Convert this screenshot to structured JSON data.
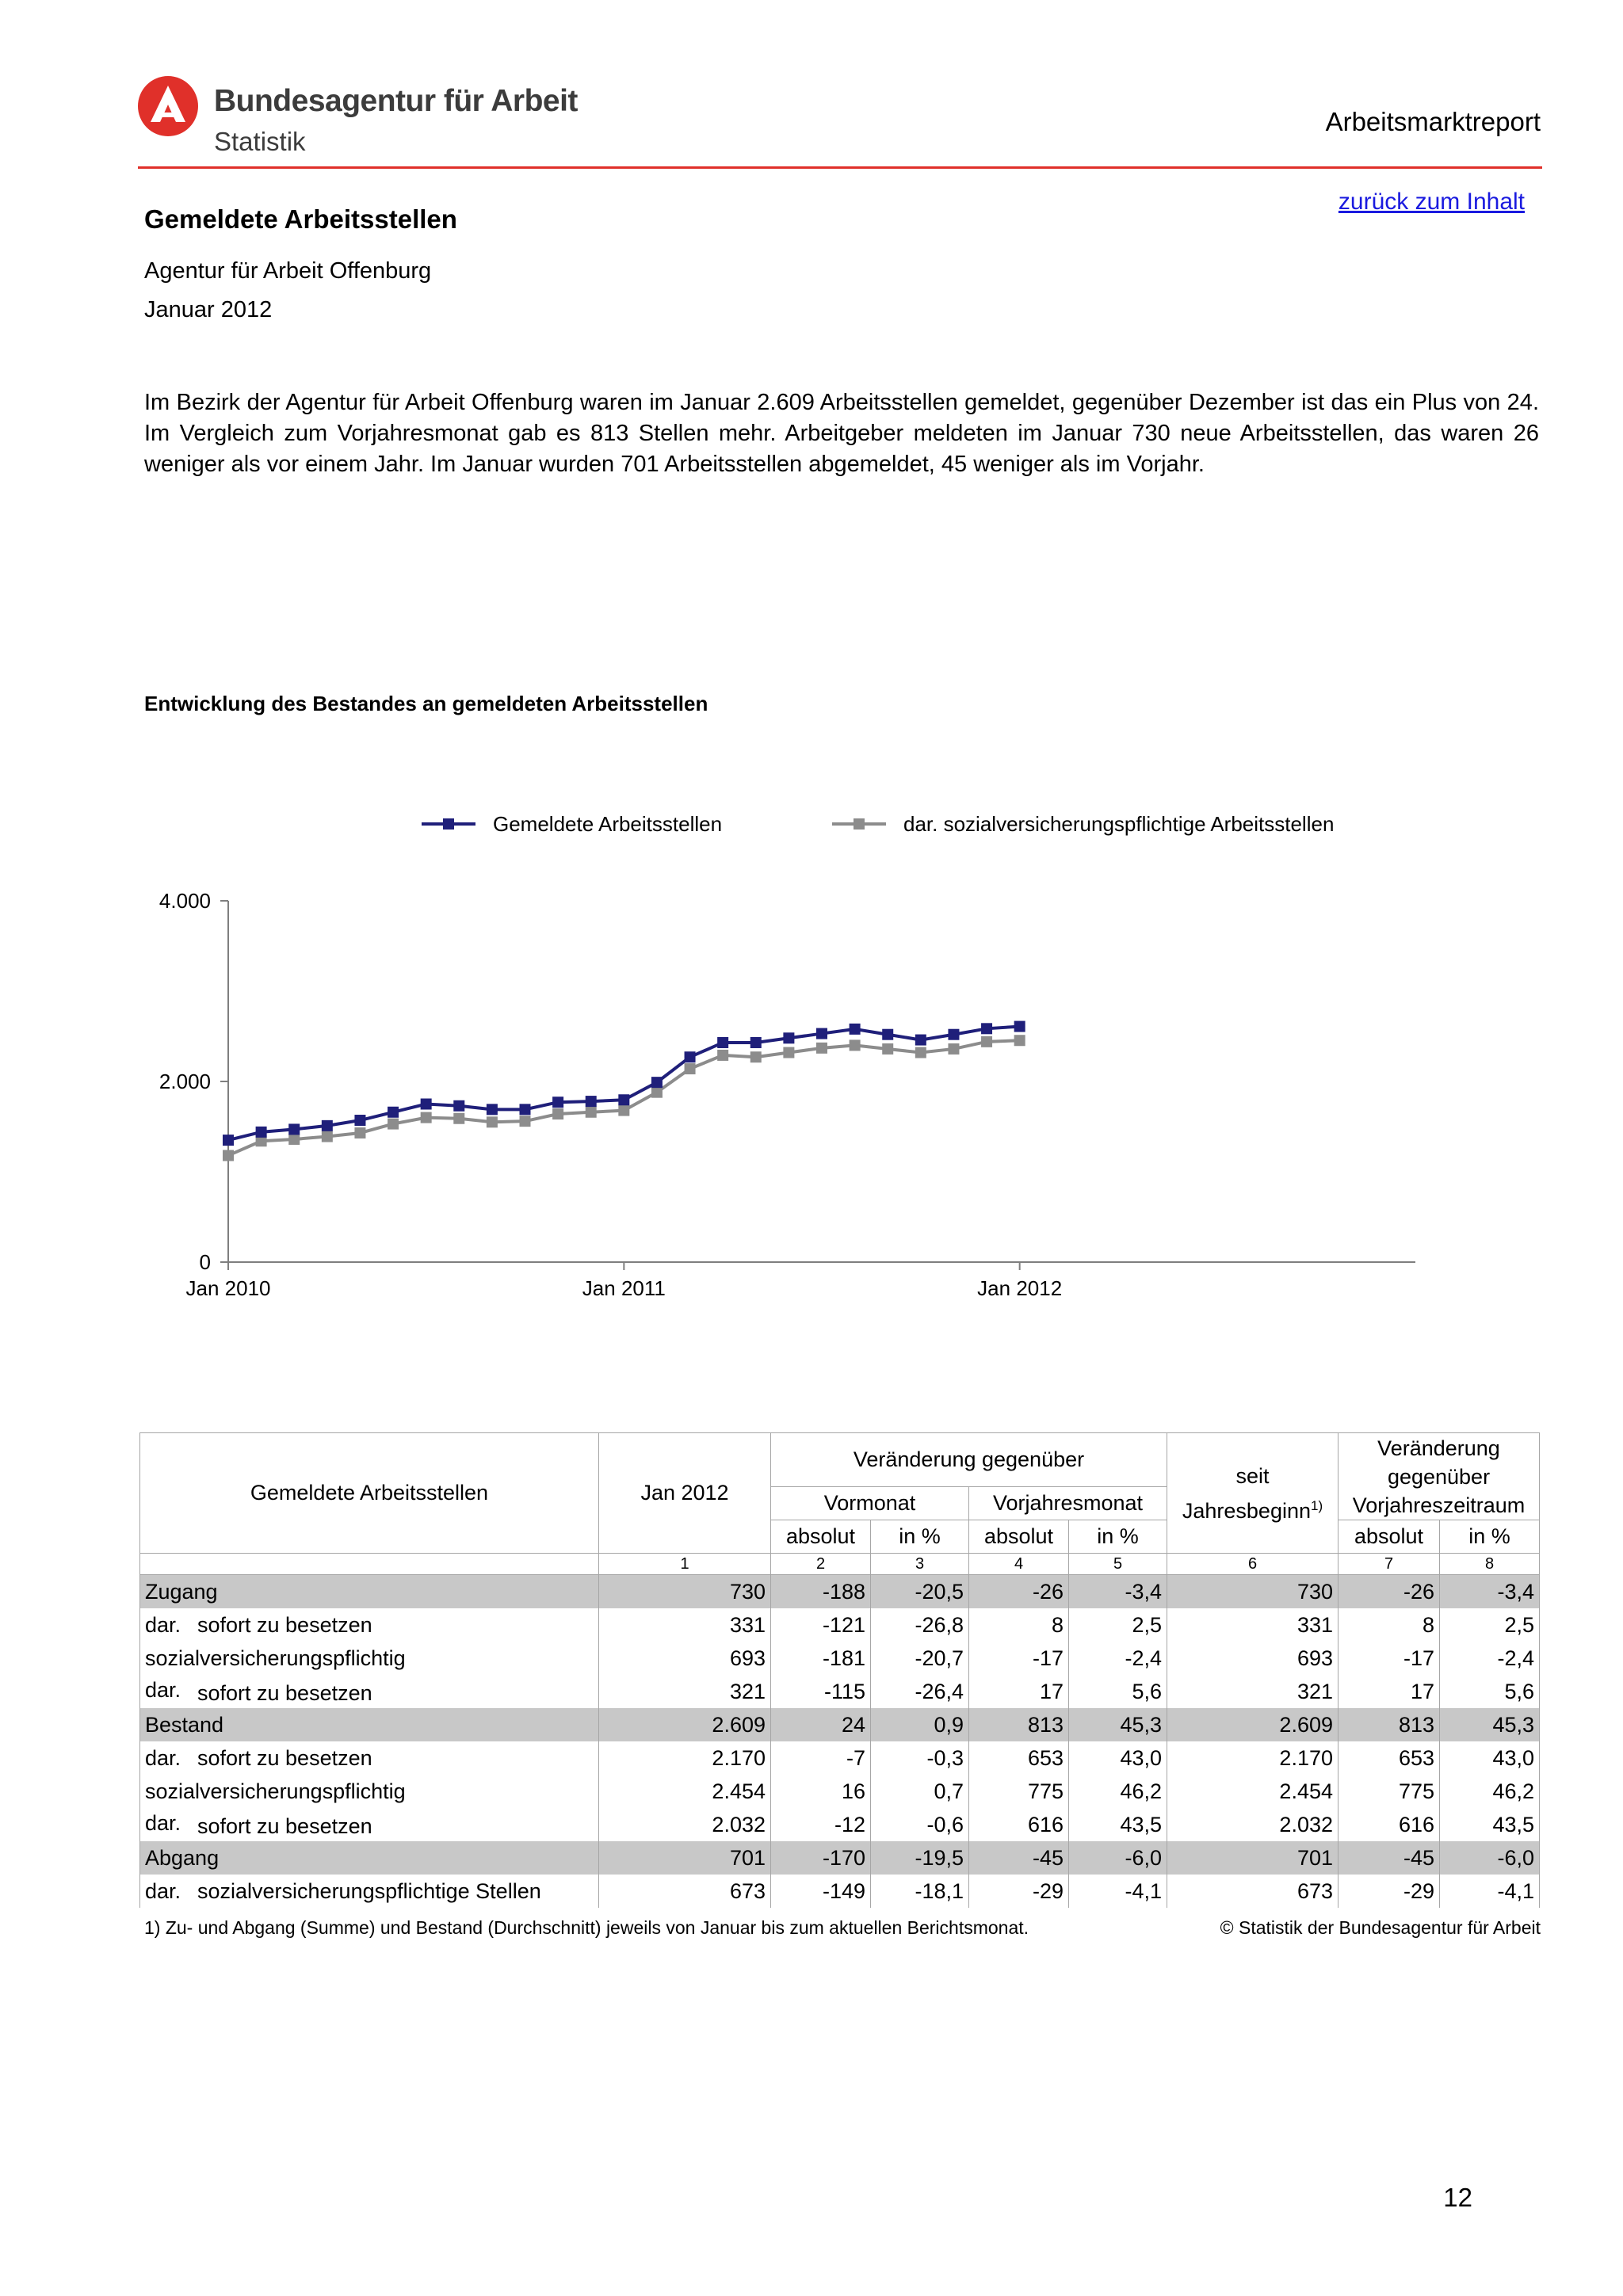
{
  "header": {
    "org_name": "Bundesagentur für Arbeit",
    "org_sub": "Statistik",
    "report_name": "Arbeitsmarktreport",
    "accent_color": "#e0302a"
  },
  "toc_link": "zurück zum Inhalt",
  "page_title": "Gemeldete Arbeitsstellen",
  "agency": "Agentur für Arbeit Offenburg",
  "period": "Januar 2012",
  "intro": "Im Bezirk der Agentur für Arbeit Offenburg waren im Januar 2.609 Arbeitsstellen gemeldet, gegenüber Dezember ist das ein Plus von 24. Im Vergleich zum Vorjahresmonat gab es 813 Stellen mehr. Arbeitgeber meldeten im Januar 730 neue Arbeitsstellen, das waren 26 weniger als vor einem Jahr. Im Januar wurden 701 Arbeitsstellen abgemeldet, 45 weniger als im Vorjahr.",
  "chart_title": "Entwicklung des Bestandes an gemeldeten Arbeitsstellen",
  "chart_data": {
    "type": "line",
    "title": "Entwicklung des Bestandes an gemeldeten Arbeitsstellen",
    "x": [
      "Jan 2010",
      "Feb 2010",
      "Mär 2010",
      "Apr 2010",
      "Mai 2010",
      "Jun 2010",
      "Jul 2010",
      "Aug 2010",
      "Sep 2010",
      "Okt 2010",
      "Nov 2010",
      "Dez 2010",
      "Jan 2011",
      "Feb 2011",
      "Mär 2011",
      "Apr 2011",
      "Mai 2011",
      "Jun 2011",
      "Jul 2011",
      "Aug 2011",
      "Sep 2011",
      "Okt 2011",
      "Nov 2011",
      "Dez 2011",
      "Jan 2012"
    ],
    "x_tick_labels": [
      "Jan 2010",
      "Jan 2011",
      "Jan 2012"
    ],
    "y_tick_labels": [
      "0",
      "2.000",
      "4.000"
    ],
    "ylim": [
      0,
      4000
    ],
    "xlim_months": [
      0,
      36
    ],
    "series": [
      {
        "name": "Gemeldete Arbeitsstellen",
        "color": "#1f1f7a",
        "values": [
          1350,
          1440,
          1470,
          1510,
          1570,
          1660,
          1750,
          1730,
          1690,
          1690,
          1770,
          1780,
          1796,
          1990,
          2270,
          2430,
          2430,
          2480,
          2530,
          2580,
          2520,
          2460,
          2520,
          2585,
          2609
        ]
      },
      {
        "name": "dar. sozialversicherungspflichtige Arbeitsstellen",
        "color": "#8c8c8c",
        "values": [
          1180,
          1340,
          1360,
          1390,
          1430,
          1530,
          1600,
          1590,
          1550,
          1560,
          1640,
          1660,
          1679,
          1880,
          2140,
          2290,
          2270,
          2320,
          2370,
          2400,
          2360,
          2320,
          2360,
          2440,
          2454
        ]
      }
    ],
    "legend": "top-center",
    "grid": false
  },
  "table": {
    "row_header": "Gemeldete Arbeitsstellen",
    "col_jan": "Jan 2012",
    "veraenderung": "Veränderung gegenüber",
    "vormonat": "Vormonat",
    "vorjahresmonat": "Vorjahresmonat",
    "seit": "seit",
    "jahresbeginn": "Jahresbeginn",
    "fn_mark": "1)",
    "vj_line1": "Veränderung",
    "vj_line2": "gegenüber",
    "vj_line3": "Vorjahreszeitraum",
    "absolut": "absolut",
    "in_pct": "in %",
    "col_numbers": [
      "1",
      "2",
      "3",
      "4",
      "5",
      "6",
      "7",
      "8"
    ],
    "rows": [
      {
        "pre": "",
        "label": "Zugang",
        "main": true,
        "values": [
          "730",
          "-188",
          "-20,5",
          "-26",
          "-3,4",
          "730",
          "-26",
          "-3,4"
        ]
      },
      {
        "pre": "dar.",
        "label": "sofort zu besetzen",
        "values": [
          "331",
          "-121",
          "-26,8",
          "8",
          "2,5",
          "331",
          "8",
          "2,5"
        ]
      },
      {
        "pre": "",
        "label": "sozialversicherungspflichtig",
        "values": [
          "693",
          "-181",
          "-20,7",
          "-17",
          "-2,4",
          "693",
          "-17",
          "-2,4"
        ]
      },
      {
        "pre2": "dar.",
        "label": "sofort zu besetzen",
        "values": [
          "321",
          "-115",
          "-26,4",
          "17",
          "5,6",
          "321",
          "17",
          "5,6"
        ]
      },
      {
        "pre": "",
        "label": "Bestand",
        "main": true,
        "values": [
          "2.609",
          "24",
          "0,9",
          "813",
          "45,3",
          "2.609",
          "813",
          "45,3"
        ]
      },
      {
        "pre": "dar.",
        "label": "sofort zu besetzen",
        "values": [
          "2.170",
          "-7",
          "-0,3",
          "653",
          "43,0",
          "2.170",
          "653",
          "43,0"
        ]
      },
      {
        "pre": "",
        "label": "sozialversicherungspflichtig",
        "values": [
          "2.454",
          "16",
          "0,7",
          "775",
          "46,2",
          "2.454",
          "775",
          "46,2"
        ]
      },
      {
        "pre2": "dar.",
        "label": "sofort zu besetzen",
        "values": [
          "2.032",
          "-12",
          "-0,6",
          "616",
          "43,5",
          "2.032",
          "616",
          "43,5"
        ]
      },
      {
        "pre": "",
        "label": "Abgang",
        "main": true,
        "values": [
          "701",
          "-170",
          "-19,5",
          "-45",
          "-6,0",
          "701",
          "-45",
          "-6,0"
        ]
      },
      {
        "pre": "dar.",
        "label": "sozialversicherungspflichtige Stellen",
        "values": [
          "673",
          "-149",
          "-18,1",
          "-29",
          "-4,1",
          "673",
          "-29",
          "-4,1"
        ]
      }
    ]
  },
  "footnote": "1) Zu- und Abgang (Summe) und Bestand (Durchschnitt) jeweils von Januar bis zum aktuellen Berichtsmonat.",
  "copyright": "© Statistik der Bundesagentur für Arbeit",
  "page_number": "12"
}
